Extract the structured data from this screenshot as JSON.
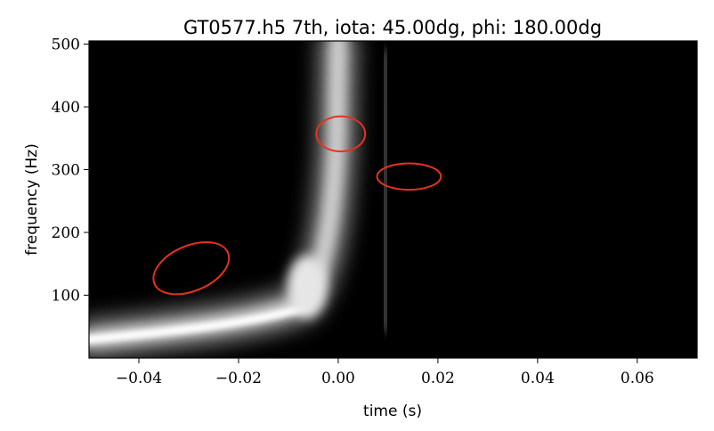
{
  "chart_data": {
    "type": "heatmap",
    "title": "GT0577.h5 7th, iota: 45.00dg, phi: 180.00dg",
    "xlabel": "time (s)",
    "ylabel": "frequency (Hz)",
    "xlim": [
      -0.05,
      0.072
    ],
    "ylim": [
      0,
      505
    ],
    "x_ticks": [
      -0.04,
      -0.02,
      0.0,
      0.02,
      0.04,
      0.06
    ],
    "x_tick_labels": [
      "−0.04",
      "−0.02",
      "0.00",
      "0.02",
      "0.04",
      "0.06"
    ],
    "y_ticks": [
      100,
      200,
      300,
      400,
      500
    ],
    "y_tick_labels": [
      "100",
      "200",
      "300",
      "400",
      "500"
    ],
    "colormap": "grayscale (black = low, white = high)",
    "background_color": "#000000",
    "annotations": [
      {
        "shape": "ellipse",
        "color": "#e8321e",
        "center_time": -0.0295,
        "center_freq": 143,
        "width_s": 0.016,
        "height_hz": 72,
        "rotation_deg": -23
      },
      {
        "shape": "ellipse",
        "color": "#e8321e",
        "center_time": 0.0005,
        "center_freq": 357,
        "width_s": 0.0098,
        "height_hz": 56,
        "rotation_deg": 0
      },
      {
        "shape": "ellipse",
        "color": "#e8321e",
        "center_time": 0.0142,
        "center_freq": 289,
        "width_s": 0.0128,
        "height_hz": 42,
        "rotation_deg": 0
      }
    ]
  }
}
